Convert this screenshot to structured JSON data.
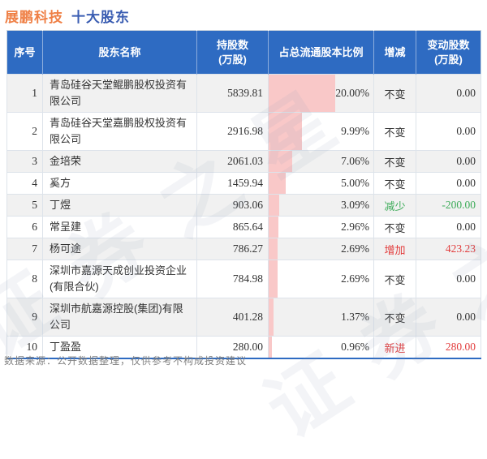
{
  "title": {
    "company": "展鹏科技",
    "section": "十大股东"
  },
  "colors": {
    "title_orange": "#ef8046",
    "title_blue": "#3a5db2",
    "header_bg": "#2e6bc2",
    "bar_pink": "#f9c8c8",
    "increase_red": "#e23c3c",
    "decrease_green": "#3cab58",
    "row_alt_gray": "#f1f1f1"
  },
  "table": {
    "headers": [
      "序号",
      "股东名称",
      "持股数\n(万股)",
      "占总流通股本比例",
      "增减",
      "变动股数\n(万股)"
    ]
  },
  "chart_data": {
    "type": "table",
    "title": "展鹏科技 十大股东",
    "columns": [
      "序号",
      "股东名称",
      "持股数(万股)",
      "占总流通股本比例",
      "增减",
      "变动股数(万股)"
    ],
    "bar_overlay_column": "占总流通股本比例",
    "bar_full_scale_pct": 31.7,
    "rows": [
      {
        "no": "1",
        "name": "青岛硅谷天堂鲲鹏股权投资有限公司",
        "shares": "5839.81",
        "pct": "20.00%",
        "pct_value": 20.0,
        "change": "不变",
        "change_type": "none",
        "delta": "0.00"
      },
      {
        "no": "2",
        "name": "青岛硅谷天堂嘉鹏股权投资有限公司",
        "shares": "2916.98",
        "pct": "9.99%",
        "pct_value": 9.99,
        "change": "不变",
        "change_type": "none",
        "delta": "0.00"
      },
      {
        "no": "3",
        "name": "金培荣",
        "shares": "2061.03",
        "pct": "7.06%",
        "pct_value": 7.06,
        "change": "不变",
        "change_type": "none",
        "delta": "0.00"
      },
      {
        "no": "4",
        "name": "奚方",
        "shares": "1459.94",
        "pct": "5.00%",
        "pct_value": 5.0,
        "change": "不变",
        "change_type": "none",
        "delta": "0.00"
      },
      {
        "no": "5",
        "name": "丁煜",
        "shares": "903.06",
        "pct": "3.09%",
        "pct_value": 3.09,
        "change": "减少",
        "change_type": "decrease",
        "delta": "-200.00"
      },
      {
        "no": "6",
        "name": "常呈建",
        "shares": "865.64",
        "pct": "2.96%",
        "pct_value": 2.96,
        "change": "不变",
        "change_type": "none",
        "delta": "0.00"
      },
      {
        "no": "7",
        "name": "杨可途",
        "shares": "786.27",
        "pct": "2.69%",
        "pct_value": 2.69,
        "change": "增加",
        "change_type": "increase",
        "delta": "423.23"
      },
      {
        "no": "8",
        "name": "深圳市嘉源天成创业投资企业(有限合伙)",
        "shares": "784.98",
        "pct": "2.69%",
        "pct_value": 2.69,
        "change": "不变",
        "change_type": "none",
        "delta": "0.00"
      },
      {
        "no": "9",
        "name": "深圳市航嘉源控股(集团)有限公司",
        "shares": "401.28",
        "pct": "1.37%",
        "pct_value": 1.37,
        "change": "不变",
        "change_type": "none",
        "delta": "0.00"
      },
      {
        "no": "10",
        "name": "丁盈盈",
        "shares": "280.00",
        "pct": "0.96%",
        "pct_value": 0.96,
        "change": "新进",
        "change_type": "new",
        "delta": "280.00"
      }
    ]
  },
  "watermark": {
    "text": "证券之星"
  },
  "footer": {
    "source_note": "数据来源：公开数据整理，仅供参考不构成投资建议"
  }
}
